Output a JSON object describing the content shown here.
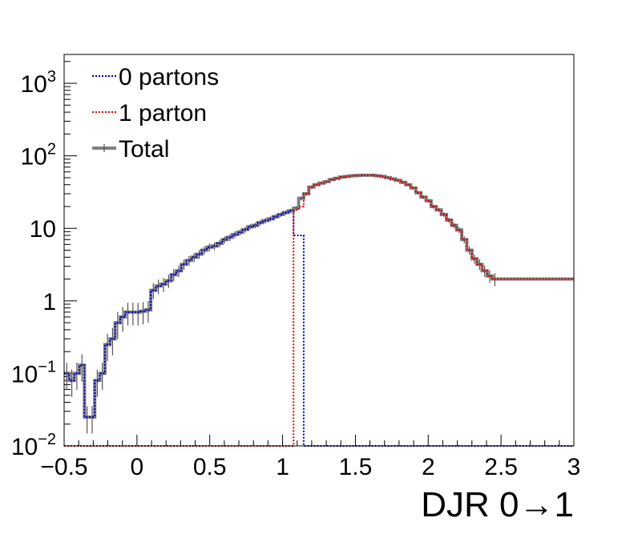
{
  "chart_data": {
    "type": "line",
    "xlabel": "DJR 0→1",
    "ylabel": "",
    "xlim": [
      -0.5,
      3
    ],
    "ylim": [
      0.01,
      2500
    ],
    "y_scale": "log",
    "grid": false,
    "legend_position": "top-left",
    "x_ticks": [
      {
        "value": -0.5,
        "label": "−0.5"
      },
      {
        "value": 0,
        "label": "0"
      },
      {
        "value": 0.5,
        "label": "0.5"
      },
      {
        "value": 1,
        "label": "1"
      },
      {
        "value": 1.5,
        "label": "1.5"
      },
      {
        "value": 2,
        "label": "2"
      },
      {
        "value": 2.5,
        "label": "2.5"
      },
      {
        "value": 3,
        "label": "3"
      }
    ],
    "y_ticks": [
      {
        "value": 0.01,
        "base": "10",
        "exp": "−2"
      },
      {
        "value": 0.1,
        "base": "10",
        "exp": "−1"
      },
      {
        "value": 1,
        "base": "1",
        "exp": ""
      },
      {
        "value": 10,
        "base": "10",
        "exp": ""
      },
      {
        "value": 100,
        "base": "10",
        "exp": "2"
      },
      {
        "value": 1000,
        "base": "10",
        "exp": "3"
      }
    ],
    "bin_width": 0.035,
    "bin_start": -0.5,
    "series": [
      {
        "name": "Total",
        "color": "#808080",
        "style": "solid",
        "values": [
          0.1,
          0.08,
          0.1,
          0.13,
          0.025,
          0.025,
          0.08,
          0.1,
          0.25,
          0.3,
          0.5,
          0.6,
          0.7,
          0.7,
          0.7,
          0.72,
          0.75,
          1.4,
          1.6,
          1.7,
          1.9,
          2.3,
          2.6,
          3.2,
          3.6,
          4.0,
          4.4,
          5.0,
          5.5,
          5.7,
          6.2,
          7.0,
          7.5,
          8.2,
          8.8,
          9.6,
          10.5,
          11.0,
          12.0,
          12.8,
          13.5,
          14.5,
          15.5,
          16.5,
          17.5,
          19.0,
          26.0,
          30.0,
          37.0,
          40.0,
          42.0,
          44.0,
          47.0,
          49.0,
          51.0,
          52.0,
          53.0,
          53.5,
          54.0,
          54.0,
          54.0,
          53.0,
          52.0,
          50.0,
          48.0,
          46.0,
          43.0,
          40.0,
          36.0,
          31.0,
          27.0,
          24.0,
          20.0,
          18.0,
          15.5,
          13.0,
          11.0,
          9.5,
          7.0,
          5.0,
          3.8,
          3.2,
          2.6,
          2.2,
          2.0
        ]
      },
      {
        "name": "0 partons",
        "color": "#0000cc",
        "style": "dotted",
        "values": [
          0.1,
          0.08,
          0.1,
          0.13,
          0.025,
          0.025,
          0.08,
          0.1,
          0.25,
          0.3,
          0.5,
          0.6,
          0.7,
          0.7,
          0.7,
          0.72,
          0.75,
          1.4,
          1.6,
          1.7,
          1.9,
          2.3,
          2.6,
          3.2,
          3.6,
          4.0,
          4.4,
          5.0,
          5.5,
          5.7,
          6.2,
          7.0,
          7.5,
          8.2,
          8.8,
          9.6,
          10.5,
          11.0,
          12.0,
          12.8,
          13.5,
          14.5,
          15.5,
          16.5,
          17.5,
          8.0,
          8.0,
          0.01,
          0.01,
          0.01,
          0.01,
          0.01,
          0.01,
          0.01,
          0.01,
          0.01,
          0.01,
          0.01,
          0.01,
          0.01,
          0.01,
          0.01,
          0.01,
          0.01,
          0.01,
          0.01,
          0.01,
          0.01,
          0.01,
          0.01,
          0.01,
          0.01,
          0.01,
          0.01,
          0.01,
          0.01,
          0.01,
          0.01,
          0.01,
          0.01,
          0.01,
          0.01,
          0.01,
          0.01,
          0.01
        ]
      },
      {
        "name": "1 parton",
        "color": "#dd0000",
        "style": "dotted",
        "values": [
          0.01,
          0.01,
          0.01,
          0.01,
          0.01,
          0.01,
          0.01,
          0.01,
          0.01,
          0.01,
          0.01,
          0.01,
          0.01,
          0.01,
          0.01,
          0.01,
          0.01,
          0.01,
          0.01,
          0.01,
          0.01,
          0.01,
          0.01,
          0.01,
          0.01,
          0.01,
          0.01,
          0.01,
          0.01,
          0.01,
          0.01,
          0.01,
          0.01,
          0.01,
          0.01,
          0.01,
          0.01,
          0.01,
          0.01,
          0.01,
          0.01,
          0.01,
          0.01,
          0.01,
          0.01,
          18.0,
          20.0,
          30.0,
          37.0,
          40.0,
          42.0,
          44.0,
          47.0,
          49.0,
          51.0,
          52.0,
          53.0,
          53.5,
          54.0,
          54.0,
          54.0,
          53.0,
          52.0,
          50.0,
          48.0,
          46.0,
          43.0,
          40.0,
          36.0,
          31.0,
          27.0,
          24.0,
          20.0,
          18.0,
          15.5,
          13.0,
          11.0,
          9.5,
          7.0,
          5.0,
          3.8,
          3.2,
          2.6,
          2.2,
          2.0
        ]
      }
    ]
  },
  "legend": [
    {
      "name": "0 partons",
      "color": "#0000cc",
      "style": "dotted"
    },
    {
      "name": "1 parton",
      "color": "#dd0000",
      "style": "dotted"
    },
    {
      "name": "Total",
      "color": "#808080",
      "style": "solid"
    }
  ]
}
